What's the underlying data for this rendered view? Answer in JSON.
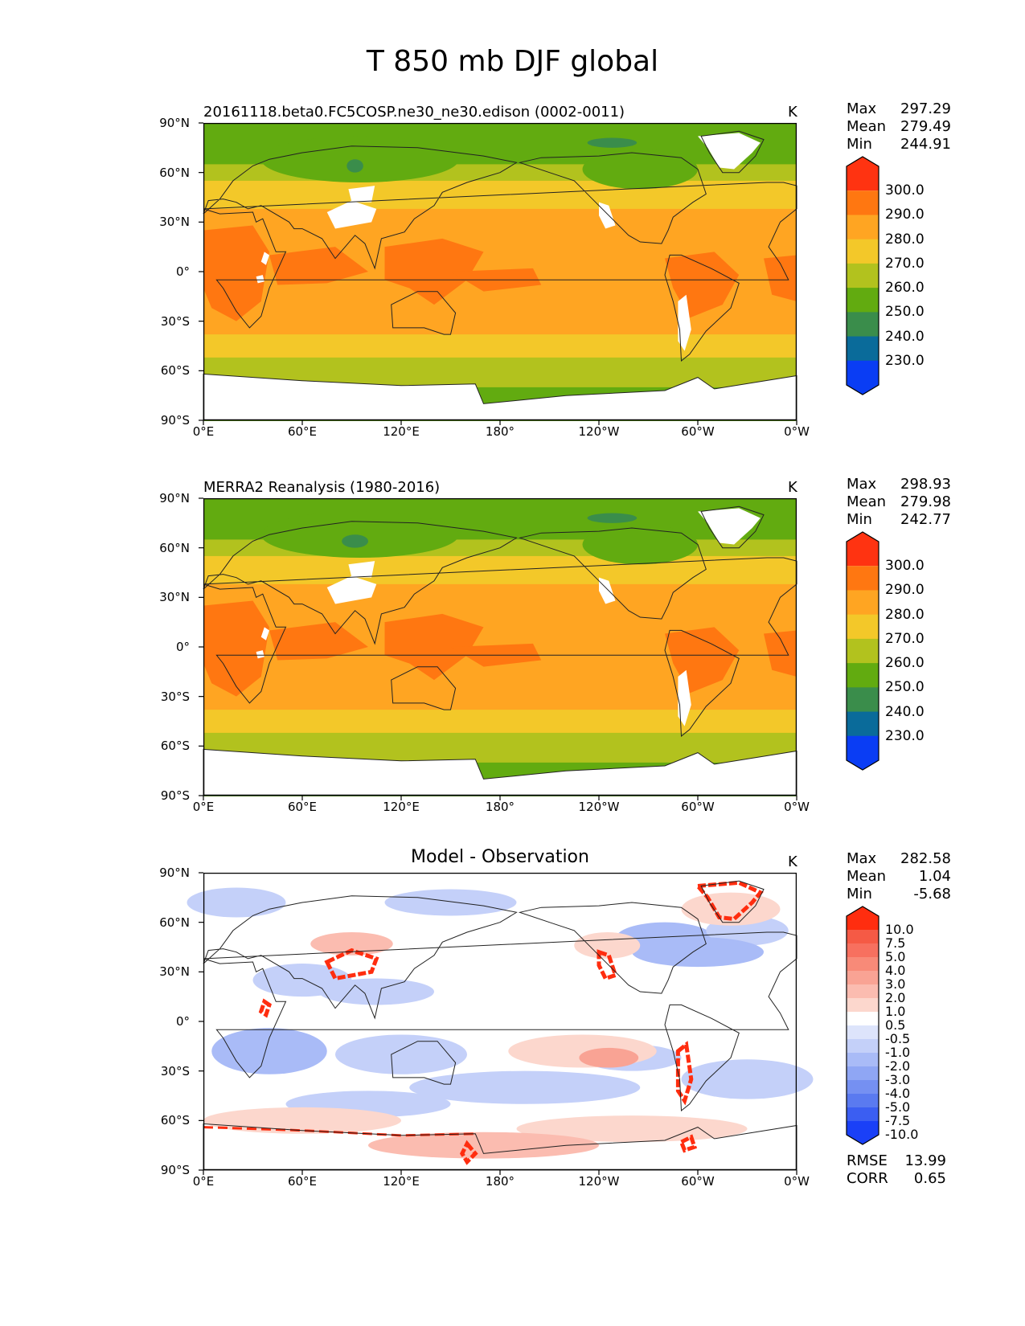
{
  "title": "T 850 mb DJF global",
  "units": "K",
  "lat_ticks": [
    "90°N",
    "60°N",
    "30°N",
    "0°",
    "30°S",
    "60°S",
    "90°S"
  ],
  "lon_ticks": [
    "0°E",
    "60°E",
    "120°E",
    "180°",
    "120°W",
    "60°W",
    "0°W"
  ],
  "levels": [
    "300.0",
    "290.0",
    "280.0",
    "270.0",
    "260.0",
    "250.0",
    "240.0",
    "230.0"
  ],
  "diff_levels": [
    "10.0",
    "7.5",
    "5.0",
    "4.0",
    "3.0",
    "2.0",
    "1.0",
    "0.5",
    "-0.5",
    "-1.0",
    "-2.0",
    "-3.0",
    "-4.0",
    "-5.0",
    "-7.5",
    "-10.0"
  ],
  "abs_colors": [
    "#ff3311",
    "#ff7711",
    "#ffa522",
    "#f3c829",
    "#b2c21e",
    "#62ab10",
    "#3a8d4b",
    "#0a6b9a",
    "#0a3df4"
  ],
  "diff_colors": [
    "#ff2d0f",
    "#f55a45",
    "#f7705f",
    "#f88a78",
    "#f9a394",
    "#fbbcb0",
    "#fcd7cd",
    "#ffffff",
    "#dde4fb",
    "#c4d0f9",
    "#a9bbf7",
    "#8fa6f4",
    "#7590f2",
    "#5a7af0",
    "#3b5ef2",
    "#1a40f7"
  ],
  "panels": [
    {
      "title": "20161118.beta0.FC5COSP.ne30_ne30.edison (0002-0011)",
      "stats": [
        [
          "Max",
          "297.29"
        ],
        [
          "Mean",
          "279.49"
        ],
        [
          "Min",
          "244.91"
        ]
      ]
    },
    {
      "title": "MERRA2 Reanalysis (1980-2016)",
      "stats": [
        [
          "Max",
          "298.93"
        ],
        [
          "Mean",
          "279.98"
        ],
        [
          "Min",
          "242.77"
        ]
      ]
    },
    {
      "title": "Model - Observation",
      "stats": [
        [
          "Max",
          "282.58"
        ],
        [
          "Mean",
          "1.04"
        ],
        [
          "Min",
          "-5.68"
        ]
      ],
      "extra": [
        [
          "RMSE",
          "13.99"
        ],
        [
          "CORR",
          "0.65"
        ]
      ]
    }
  ]
}
